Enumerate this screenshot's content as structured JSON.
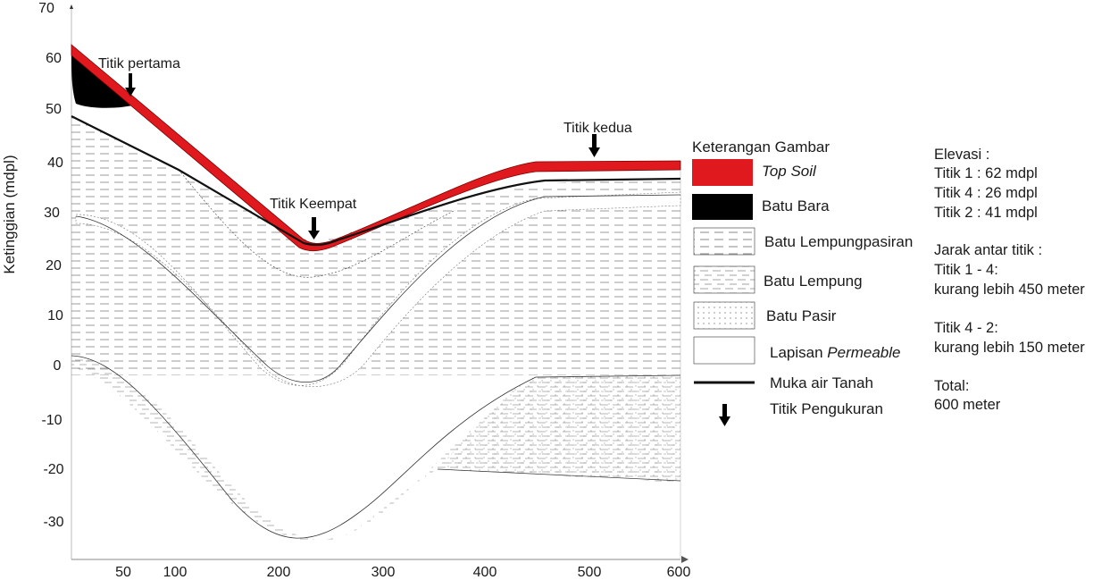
{
  "figure": {
    "y_axis": {
      "label": "Ketinggian (mdpl)",
      "ticks": [
        "70",
        "60",
        "50",
        "40",
        "30",
        "20",
        "10",
        "0",
        "-10",
        "-20",
        "-30"
      ]
    },
    "x_axis": {
      "ticks": [
        "50",
        "100",
        "200",
        "300",
        "400",
        "500",
        "600"
      ]
    },
    "markers": [
      {
        "label": "Titik pertama"
      },
      {
        "label": "Titik Keempat"
      },
      {
        "label": "Titik kedua"
      }
    ]
  },
  "legend": {
    "title": "Keterangan Gambar",
    "items": [
      {
        "label": "Top Soil",
        "italic_part": "Top Soil",
        "swatch": "topsoil",
        "color": "#e0191f"
      },
      {
        "label": "Batu Bara",
        "swatch": "coal",
        "color": "#000000"
      },
      {
        "label": "Batu Lempungpasiran",
        "swatch": "sandyclay"
      },
      {
        "label": "Batu Lempung",
        "swatch": "clay"
      },
      {
        "label": "Batu Pasir",
        "swatch": "sand"
      },
      {
        "label_prefix": "Lapisan ",
        "label_italic": "Permeable",
        "swatch": "permeable"
      },
      {
        "label": "Muka air Tanah",
        "swatch": "watertable"
      },
      {
        "label": "Titik Pengukuran",
        "swatch": "arrow"
      }
    ]
  },
  "info": {
    "elevation_title": "Elevasi :",
    "elevations": [
      "Titik 1 : 62 mdpl",
      "Titik 4 : 26 mdpl",
      "Titik 2 : 41 mdpl"
    ],
    "distance_title": "Jarak antar titik :",
    "distances": [
      {
        "label": "Titik 1 - 4:",
        "value": "kurang lebih 450 meter"
      },
      {
        "label": "Titik 4 - 2:",
        "value": "kurang lebih 150 meter"
      }
    ],
    "total_label": "Total:",
    "total_value": "600 meter"
  }
}
